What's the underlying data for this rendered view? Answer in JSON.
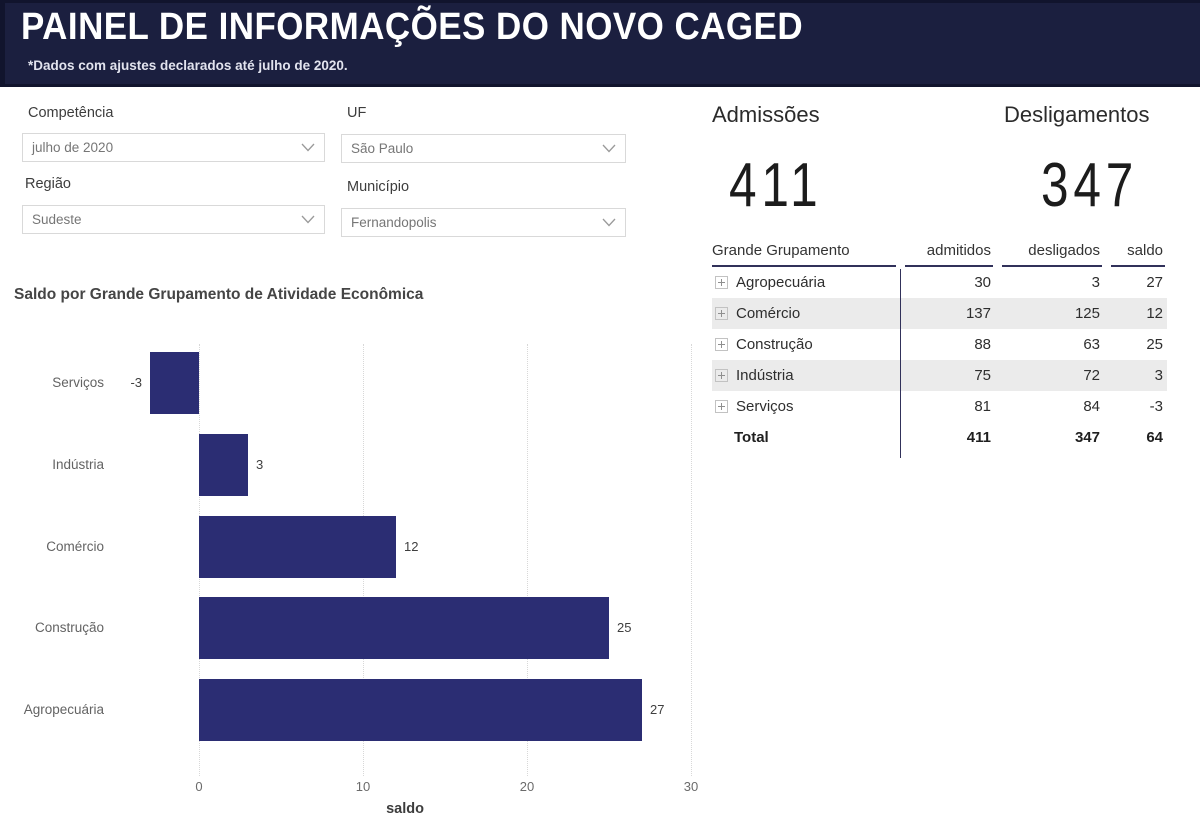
{
  "header": {
    "title": "PAINEL DE INFORMAÇÕES DO NOVO CAGED",
    "subtitle": "*Dados com ajustes declarados até julho de 2020."
  },
  "filters": [
    {
      "id": "competencia",
      "label": "Competência",
      "value": "julho de 2020"
    },
    {
      "id": "uf",
      "label": "UF",
      "value": "São Paulo"
    },
    {
      "id": "regiao",
      "label": "Região",
      "value": "Sudeste"
    },
    {
      "id": "municipio",
      "label": "Município",
      "value": "Fernandopolis"
    }
  ],
  "kpis": [
    {
      "label": "Admissões",
      "value": "411"
    },
    {
      "label": "Desligamentos",
      "value": "347"
    }
  ],
  "table": {
    "columns": [
      "Grande Grupamento",
      "admitidos",
      "desligados",
      "saldo"
    ],
    "rows": [
      {
        "group": "Agropecuária",
        "admitidos": "30",
        "desligados": "3",
        "saldo": "27"
      },
      {
        "group": "Comércio",
        "admitidos": "137",
        "desligados": "125",
        "saldo": "12"
      },
      {
        "group": "Construção",
        "admitidos": "88",
        "desligados": "63",
        "saldo": "25"
      },
      {
        "group": "Indústria",
        "admitidos": "75",
        "desligados": "72",
        "saldo": "3"
      },
      {
        "group": "Serviços",
        "admitidos": "81",
        "desligados": "84",
        "saldo": "-3"
      }
    ],
    "total": {
      "label": "Total",
      "admitidos": "411",
      "desligados": "347",
      "saldo": "64"
    }
  },
  "chart_data": {
    "type": "bar",
    "orientation": "horizontal",
    "title": "Saldo por Grande Grupamento de Atividade Econômica",
    "categories": [
      "Serviços",
      "Indústria",
      "Comércio",
      "Construção",
      "Agropecuária"
    ],
    "values": [
      -3,
      3,
      12,
      25,
      27
    ],
    "xlabel": "saldo",
    "xticks": [
      0,
      10,
      20,
      30
    ],
    "xlim": [
      -5,
      30
    ],
    "grid": "dotted-vertical",
    "legend": false,
    "value_labels": true,
    "bar_color": "#2b2d73"
  },
  "colors": {
    "header_navy": "#1b1f3f",
    "header_border": "#11142d",
    "bar_navy": "#2b2d73",
    "row_alt": "#ebebeb",
    "table_divider": "#31315a",
    "text_dark": "#252423",
    "text_gray": "#636363"
  }
}
